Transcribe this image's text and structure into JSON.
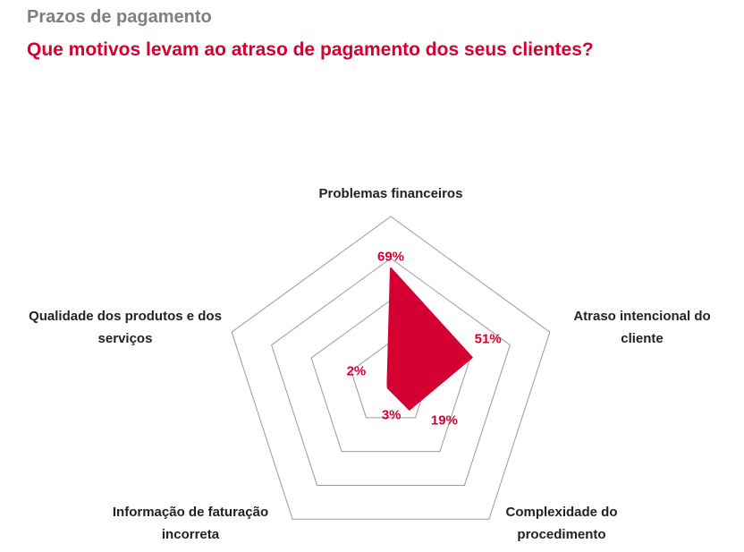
{
  "chart_data": {
    "type": "radar",
    "title": "Prazos de pagamento",
    "subtitle": "Que motivos levam ao atraso de pagamento dos seus clientes?",
    "categories": [
      "Problemas financeiros",
      "Atraso intencional do cliente",
      "Complexidade do procedimento",
      "Informação de faturação incorreta",
      "Qualidade dos produtos e dos serviços"
    ],
    "values": [
      69,
      51,
      19,
      3,
      2
    ],
    "value_labels": [
      "69%",
      "51%",
      "19%",
      "3%",
      "2%"
    ],
    "color": "#d50032",
    "rlim": [
      0,
      100
    ],
    "rticks": [
      25,
      50,
      75,
      100
    ],
    "grid": true
  }
}
